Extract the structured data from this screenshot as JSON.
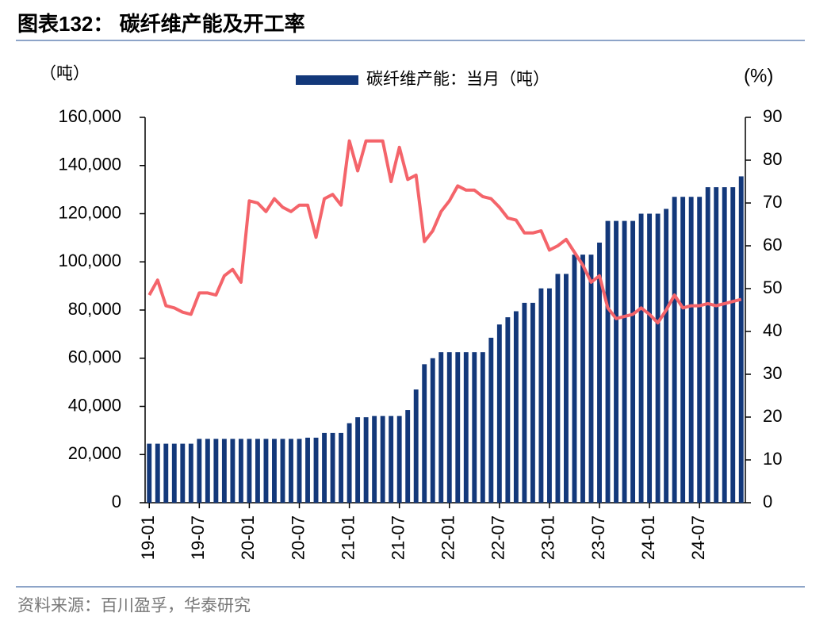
{
  "chart_data": {
    "type": "bar-line",
    "title": "图表132： 碳纤维产能及开工率",
    "y_label": "（吨）",
    "y2_label": "(%)",
    "source": "资料来源：百川盈孚，华泰研究",
    "categories": [
      "19-01",
      null,
      null,
      null,
      null,
      null,
      "19-07",
      null,
      null,
      null,
      null,
      null,
      "20-01",
      null,
      null,
      null,
      null,
      null,
      "20-07",
      null,
      null,
      null,
      null,
      null,
      "21-01",
      null,
      null,
      null,
      null,
      null,
      "21-07",
      null,
      null,
      null,
      null,
      null,
      "22-01",
      null,
      null,
      null,
      null,
      null,
      "22-07",
      null,
      null,
      null,
      null,
      null,
      "23-01",
      null,
      null,
      null,
      null,
      null,
      "23-07",
      null,
      null,
      null,
      null,
      null,
      "24-01",
      null,
      null,
      null,
      null,
      null,
      "24-07",
      null,
      null,
      null,
      null,
      null
    ],
    "series": [
      {
        "name": "碳纤维产能：当月（吨）",
        "type": "bar",
        "color": "#13387a",
        "values": [
          24500,
          24500,
          24500,
          24500,
          24500,
          24500,
          26500,
          26500,
          26500,
          26500,
          26500,
          26500,
          26500,
          26500,
          26500,
          26500,
          26500,
          26500,
          26500,
          27000,
          27000,
          29000,
          29000,
          29000,
          33000,
          35500,
          35500,
          36000,
          36000,
          36000,
          36000,
          38500,
          47000,
          57500,
          60000,
          62500,
          62500,
          62500,
          62500,
          62500,
          62500,
          68500,
          74000,
          77000,
          79500,
          83000,
          83000,
          89000,
          89000,
          95000,
          95000,
          103000,
          103000,
          103000,
          108000,
          117000,
          117000,
          117000,
          117000,
          120000,
          120000,
          120000,
          122000,
          127000,
          127000,
          127000,
          127000,
          131000,
          131000,
          131000,
          131000,
          135500
        ]
      },
      {
        "type": "line",
        "axis": "y2",
        "color": "#f4646a",
        "values": [
          48.5,
          52,
          46,
          45.5,
          44.5,
          44,
          49,
          49,
          48.5,
          53,
          54.5,
          51.5,
          70.5,
          70,
          68,
          71,
          69,
          68,
          69.5,
          69.5,
          62,
          71,
          72,
          69.5,
          84.5,
          77.5,
          84.5,
          84.5,
          84.5,
          75,
          83,
          75.5,
          76.5,
          61,
          63.5,
          68,
          70.5,
          74,
          73,
          73,
          71.5,
          71,
          69,
          66.5,
          66,
          63,
          63,
          63.5,
          59,
          60,
          61.5,
          58.5,
          55.5,
          51.5,
          53,
          45.5,
          43,
          43.5,
          44,
          45.5,
          44,
          42,
          45,
          48.5,
          45.5,
          46,
          46,
          46.5,
          46,
          46.5,
          47,
          47.5
        ]
      }
    ],
    "ylim": [
      0,
      160000
    ],
    "yticks": [
      0,
      {
        "value": 20000,
        "label": "20,000"
      },
      {
        "value": 40000,
        "label": "40,000"
      },
      {
        "value": 60000,
        "label": "60,000"
      },
      {
        "value": 80000,
        "label": "80,000"
      },
      {
        "value": 100000,
        "label": "100,000"
      },
      {
        "value": 120000,
        "label": "120,000"
      },
      {
        "value": 140000,
        "label": "140,000"
      },
      {
        "value": 160000,
        "label": "160,000"
      }
    ],
    "y2lim": [
      0,
      90
    ],
    "y2ticks": [
      0,
      10,
      20,
      30,
      40,
      50,
      60,
      70,
      80,
      90
    ]
  }
}
